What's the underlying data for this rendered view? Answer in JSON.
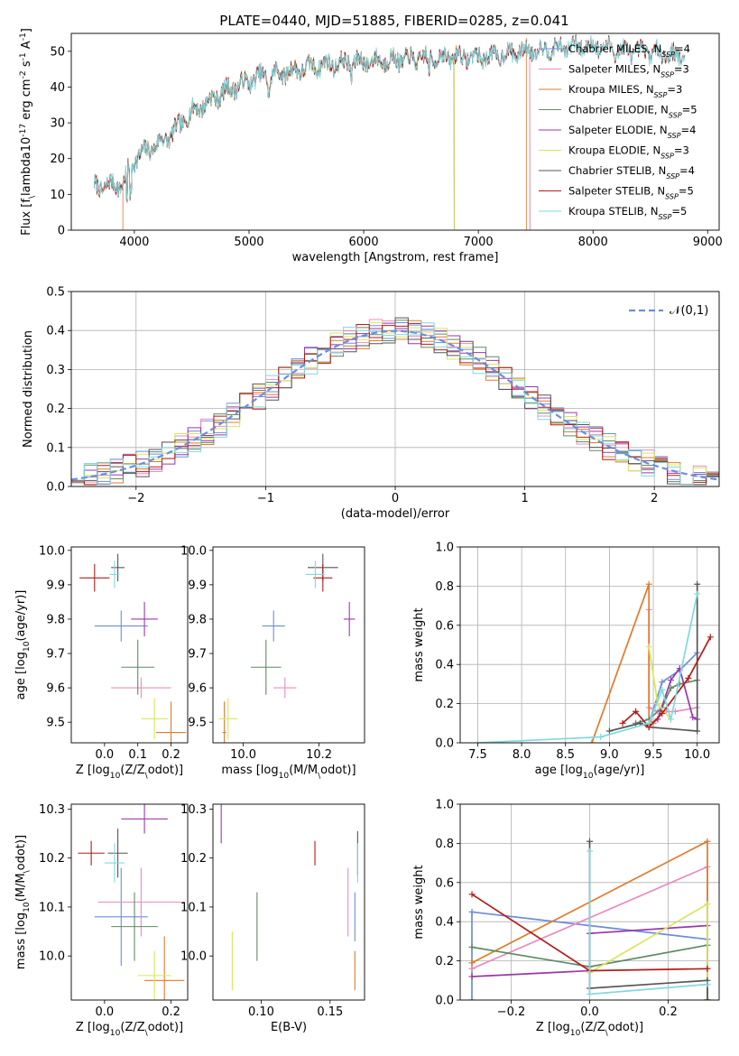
{
  "figure": {
    "title": "PLATE=0440, MJD=51885, FIBERID=0285, z=0.041",
    "palette": {
      "Chabrier MILES": "#6d8ddb",
      "Salpeter MILES": "#e88cc0",
      "Kroupa MILES": "#e07b2b",
      "Chabrier ELODIE": "#5f8c64",
      "Salpeter ELODIE": "#9b38a8",
      "Kroupa ELODIE": "#d9e65a",
      "Chabrier STELIB": "#555555",
      "Salpeter STELIB": "#b51b1b",
      "Kroupa STELIB": "#7fd9dd"
    }
  },
  "chart_data": [
    {
      "id": "spectrum",
      "type": "line",
      "title": "PLATE=0440, MJD=51885, FIBERID=0285, z=0.041",
      "xlabel": "wavelength [Angstrom, rest frame]",
      "ylabel": "Flux [f$_\\lambda$10$^{-17}$ erg cm$^{-2}$ s$^{-1}$ A$^{-1}$]",
      "xlim": [
        3450,
        9100
      ],
      "ylim": [
        0,
        55
      ],
      "xticks": [
        "4000",
        "5000",
        "6000",
        "7000",
        "8000",
        "9000"
      ],
      "yticks": [
        "0",
        "10",
        "20",
        "30",
        "40",
        "50"
      ],
      "legend_position": "top-right",
      "continuum": {
        "x": [
          3650,
          3900,
          4000,
          4300,
          4500,
          4800,
          5100,
          5300,
          5600,
          5900,
          6200,
          6500,
          6800,
          7100,
          7400,
          7700,
          8000,
          8300,
          8600,
          8850
        ],
        "y": [
          12,
          13,
          20,
          26,
          33,
          39,
          43,
          44,
          46,
          47,
          47.5,
          48,
          48.5,
          48.5,
          50,
          51,
          51.5,
          50,
          49.5,
          48
        ]
      },
      "series": [
        {
          "name": "Chabrier MILES, N$_{SSP}$=4",
          "end_x": 7450
        },
        {
          "name": "Salpeter MILES, N$_{SSP}$=3",
          "end_x": 7450
        },
        {
          "name": "Kroupa MILES, N$_{SSP}$=3",
          "end_x": 7420
        },
        {
          "name": "Chabrier ELODIE, N$_{SSP}$=5",
          "end_x": 6790
        },
        {
          "name": "Salpeter ELODIE, N$_{SSP}$=4",
          "end_x": 6790
        },
        {
          "name": "Kroupa ELODIE, N$_{SSP}$=3",
          "end_x": 6790
        },
        {
          "name": "Chabrier STELIB, N$_{SSP}$=4",
          "end_x": 8800
        },
        {
          "name": "Salpeter STELIB, N$_{SSP}$=5",
          "end_x": 8800
        },
        {
          "name": "Kroupa STELIB, N$_{SSP}$=5",
          "end_x": 8800
        }
      ]
    },
    {
      "id": "residuals",
      "type": "line",
      "xlabel": "(data-model)/error",
      "ylabel": "Normed distribution",
      "xlim": [
        -2.5,
        2.5
      ],
      "ylim": [
        0,
        0.5
      ],
      "xticks": [
        "−2",
        "−1",
        "0",
        "1",
        "2"
      ],
      "yticks": [
        "0.0",
        "0.1",
        "0.2",
        "0.3",
        "0.4",
        "0.5"
      ],
      "grid": true,
      "legend_position": "top-right",
      "reference": {
        "name": "$\\mathcal{N}(0,1)$",
        "mean": 0,
        "sigma": 1
      },
      "bin_width": 0.1,
      "bins_from": -2.5
    },
    {
      "id": "age_vs_Z",
      "type": "scatter",
      "xlabel": "Z [log$_{10}$(Z/Z$_\\odot$)]",
      "ylabel": "age  [log$_{10}$(age/yr)]",
      "xlim": [
        -0.1,
        0.25
      ],
      "ylim": [
        9.44,
        10.01
      ],
      "xticks": [
        "0.0",
        "0.1",
        "0.2"
      ],
      "yticks": [
        "9.5",
        "9.6",
        "9.7",
        "9.8",
        "9.9",
        "10.0"
      ],
      "points": [
        {
          "model": "Chabrier MILES",
          "x": 0.05,
          "y": 9.78,
          "xerr": 0.08,
          "yerr": 0.045
        },
        {
          "model": "Salpeter MILES",
          "x": 0.11,
          "y": 9.6,
          "xerr": 0.09,
          "yerr": 0.03
        },
        {
          "model": "Kroupa MILES",
          "x": 0.2,
          "y": 9.47,
          "xerr": 0.045,
          "yerr": 0.09
        },
        {
          "model": "Chabrier ELODIE",
          "x": 0.1,
          "y": 9.66,
          "xerr": 0.05,
          "yerr": 0.08
        },
        {
          "model": "Salpeter ELODIE",
          "x": 0.12,
          "y": 9.8,
          "xerr": 0.04,
          "yerr": 0.05
        },
        {
          "model": "Kroupa ELODIE",
          "x": 0.15,
          "y": 9.51,
          "xerr": 0.04,
          "yerr": 0.06
        },
        {
          "model": "Chabrier STELIB",
          "x": 0.04,
          "y": 9.95,
          "xerr": 0.02,
          "yerr": 0.04
        },
        {
          "model": "Salpeter STELIB",
          "x": -0.03,
          "y": 9.92,
          "xerr": 0.045,
          "yerr": 0.04
        },
        {
          "model": "Kroupa STELIB",
          "x": 0.03,
          "y": 9.93,
          "xerr": 0.015,
          "yerr": 0.04
        }
      ]
    },
    {
      "id": "age_vs_mass",
      "type": "scatter",
      "xlabel": "mass [log$_{10}$(M/M$_\\odot$)]",
      "ylabel": "",
      "xlim": [
        9.92,
        10.32
      ],
      "ylim": [
        9.44,
        10.01
      ],
      "xticks": [
        "10.0",
        "10.2"
      ],
      "yticks": [
        "9.5",
        "9.6",
        "9.7",
        "9.8",
        "9.9",
        "10.0"
      ],
      "points": [
        {
          "model": "Chabrier MILES",
          "x": 10.08,
          "y": 9.78,
          "xerr": 0.03,
          "yerr": 0.045
        },
        {
          "model": "Salpeter MILES",
          "x": 10.11,
          "y": 9.6,
          "xerr": 0.03,
          "yerr": 0.03
        },
        {
          "model": "Kroupa MILES",
          "x": 9.95,
          "y": 9.47,
          "xerr": 0.005,
          "yerr": 0.09
        },
        {
          "model": "Chabrier ELODIE",
          "x": 10.06,
          "y": 9.66,
          "xerr": 0.04,
          "yerr": 0.08
        },
        {
          "model": "Salpeter ELODIE",
          "x": 10.28,
          "y": 9.8,
          "xerr": 0.015,
          "yerr": 0.05
        },
        {
          "model": "Kroupa ELODIE",
          "x": 9.96,
          "y": 9.51,
          "xerr": 0.025,
          "yerr": 0.06
        },
        {
          "model": "Chabrier STELIB",
          "x": 10.21,
          "y": 9.95,
          "xerr": 0.04,
          "yerr": 0.04
        },
        {
          "model": "Salpeter STELIB",
          "x": 10.21,
          "y": 9.92,
          "xerr": 0.025,
          "yerr": 0.04
        },
        {
          "model": "Kroupa STELIB",
          "x": 10.19,
          "y": 9.93,
          "xerr": 0.025,
          "yerr": 0.04
        }
      ]
    },
    {
      "id": "weight_vs_age",
      "type": "line",
      "xlabel": "age  [log$_{10}$(age/yr)]",
      "ylabel": "mass weight",
      "xlim": [
        7.3,
        10.25
      ],
      "ylim": [
        0,
        1
      ],
      "xticks": [
        "7.5",
        "8.0",
        "8.5",
        "9.0",
        "9.5",
        "10.0"
      ],
      "yticks": [
        "0.0",
        "0.2",
        "0.4",
        "0.6",
        "0.8",
        "1.0"
      ],
      "grid": true,
      "series": [
        {
          "model": "Chabrier MILES",
          "x": [
            9.45,
            9.6,
            9.8,
            10.0
          ],
          "y": [
            0.1,
            0.31,
            0.37,
            0.46
          ]
        },
        {
          "model": "Salpeter MILES",
          "x": [
            9.45,
            9.45,
            9.55,
            9.65,
            9.75,
            10.0
          ],
          "y": [
            0.68,
            0.18,
            0.16,
            0.16,
            0.16,
            0.18
          ]
        },
        {
          "model": "Kroupa MILES",
          "x": [
            8.8,
            9.45,
            9.45,
            9.5
          ],
          "y": [
            0.0,
            0.81,
            0.12,
            0.1
          ]
        },
        {
          "model": "Chabrier ELODIE",
          "x": [
            9.3,
            9.45,
            9.6,
            9.7,
            9.8,
            10.0
          ],
          "y": [
            0.1,
            0.12,
            0.18,
            0.28,
            0.3,
            0.32
          ]
        },
        {
          "model": "Salpeter ELODIE",
          "x": [
            9.45,
            9.55,
            9.7,
            9.8,
            9.95,
            10.0
          ],
          "y": [
            0.09,
            0.12,
            0.32,
            0.38,
            0.13,
            0.12
          ]
        },
        {
          "model": "Kroupa ELODIE",
          "x": [
            9.45,
            9.55,
            9.7
          ],
          "y": [
            0.49,
            0.2,
            0.12
          ]
        },
        {
          "model": "Chabrier STELIB",
          "x": [
            9.0,
            9.35,
            9.45,
            10.0,
            10.0
          ],
          "y": [
            0.06,
            0.1,
            0.08,
            0.06,
            0.81
          ]
        },
        {
          "model": "Salpeter STELIB",
          "x": [
            9.15,
            9.3,
            9.45,
            9.6,
            9.9,
            10.15
          ],
          "y": [
            0.1,
            0.16,
            0.08,
            0.15,
            0.33,
            0.54
          ]
        },
        {
          "model": "Kroupa STELIB",
          "x": [
            7.5,
            8.9,
            9.45,
            9.6,
            9.7,
            10.0
          ],
          "y": [
            0.0,
            0.03,
            0.1,
            0.27,
            0.12,
            0.76
          ]
        }
      ]
    },
    {
      "id": "mass_vs_Z",
      "type": "scatter",
      "xlabel": "Z [log$_{10}$(Z/Z$_\\odot$)]",
      "ylabel": "mass [log$_{10}$(M/M$_\\odot$)]",
      "xlim": [
        -0.1,
        0.25
      ],
      "ylim": [
        9.91,
        10.31
      ],
      "xticks": [
        "0.0",
        "0.2"
      ],
      "yticks": [
        "10.0",
        "10.1",
        "10.2",
        "10.3"
      ],
      "points": [
        {
          "model": "Chabrier MILES",
          "x": 0.05,
          "y": 10.08,
          "xerr": 0.08,
          "yerr": 0.1
        },
        {
          "model": "Salpeter MILES",
          "x": 0.11,
          "y": 10.11,
          "xerr": 0.13,
          "yerr": 0.07
        },
        {
          "model": "Kroupa MILES",
          "x": 0.18,
          "y": 9.95,
          "xerr": 0.06,
          "yerr": 0.09
        },
        {
          "model": "Chabrier ELODIE",
          "x": 0.09,
          "y": 10.06,
          "xerr": 0.07,
          "yerr": 0.07
        },
        {
          "model": "Salpeter ELODIE",
          "x": 0.12,
          "y": 10.28,
          "xerr": 0.07,
          "yerr": 0.03
        },
        {
          "model": "Kroupa ELODIE",
          "x": 0.15,
          "y": 9.96,
          "xerr": 0.05,
          "yerr": 0.05
        },
        {
          "model": "Chabrier STELIB",
          "x": 0.04,
          "y": 10.21,
          "xerr": 0.03,
          "yerr": 0.05
        },
        {
          "model": "Salpeter STELIB",
          "x": -0.04,
          "y": 10.21,
          "xerr": 0.04,
          "yerr": 0.025
        },
        {
          "model": "Kroupa STELIB",
          "x": 0.03,
          "y": 10.19,
          "xerr": 0.03,
          "yerr": 0.04
        }
      ]
    },
    {
      "id": "mass_vs_EBV",
      "type": "scatter",
      "xlabel": "E(B-V)",
      "ylabel": "",
      "xlim": [
        0.065,
        0.175
      ],
      "ylim": [
        9.91,
        10.31
      ],
      "xticks": [
        "0.10",
        "0.15"
      ],
      "yticks": [
        "10.0",
        "10.1",
        "10.2",
        "10.3"
      ],
      "points": [
        {
          "model": "Chabrier MILES",
          "x": 0.168,
          "y": 10.08,
          "yerr": 0.05
        },
        {
          "model": "Salpeter MILES",
          "x": 0.163,
          "y": 10.11,
          "yerr": 0.07
        },
        {
          "model": "Kroupa MILES",
          "x": 0.168,
          "y": 9.97,
          "yerr": 0.04
        },
        {
          "model": "Chabrier ELODIE",
          "x": 0.097,
          "y": 10.06,
          "yerr": 0.07
        },
        {
          "model": "Salpeter ELODIE",
          "x": 0.071,
          "y": 10.27,
          "yerr": 0.04
        },
        {
          "model": "Kroupa ELODIE",
          "x": 0.079,
          "y": 9.99,
          "yerr": 0.06
        },
        {
          "model": "Chabrier STELIB",
          "x": 0.17,
          "y": 10.21,
          "yerr": 0.045
        },
        {
          "model": "Salpeter STELIB",
          "x": 0.139,
          "y": 10.21,
          "yerr": 0.025
        },
        {
          "model": "Kroupa STELIB",
          "x": 0.17,
          "y": 10.19,
          "yerr": 0.04
        }
      ]
    },
    {
      "id": "weight_vs_Z",
      "type": "line",
      "xlabel": "Z [log$_{10}$(Z/Z$_\\odot$)]",
      "ylabel": "mass weight",
      "xlim": [
        -0.33,
        0.33
      ],
      "ylim": [
        0,
        1
      ],
      "xticks": [
        "−0.2",
        "0.0",
        "0.2"
      ],
      "yticks": [
        "0.0",
        "0.2",
        "0.4",
        "0.6",
        "0.8",
        "1.0"
      ],
      "grid": true,
      "series": [
        {
          "model": "Chabrier MILES",
          "x": [
            -0.3,
            -0.3,
            0.0,
            0.3
          ],
          "y": [
            0.0,
            0.45,
            0.38,
            0.31
          ]
        },
        {
          "model": "Salpeter MILES",
          "x": [
            -0.3,
            0.3,
            0.3
          ],
          "y": [
            0.16,
            0.68,
            0.0
          ]
        },
        {
          "model": "Kroupa MILES",
          "x": [
            -0.3,
            0.3,
            0.3
          ],
          "y": [
            0.19,
            0.81,
            0.0
          ]
        },
        {
          "model": "Chabrier ELODIE",
          "x": [
            -0.3,
            0.0,
            0.3,
            0.3
          ],
          "y": [
            0.27,
            0.17,
            0.28,
            0.0
          ]
        },
        {
          "model": "Salpeter ELODIE",
          "x": [
            -0.3,
            0.0,
            0.0,
            0.3
          ],
          "y": [
            0.12,
            0.15,
            0.34,
            0.38
          ]
        },
        {
          "model": "Kroupa ELODIE",
          "x": [
            0.0,
            0.3,
            0.3
          ],
          "y": [
            0.14,
            0.49,
            0.0
          ]
        },
        {
          "model": "Chabrier STELIB",
          "x": [
            0.0,
            0.0,
            0.3,
            0.3
          ],
          "y": [
            0.81,
            0.06,
            0.1,
            0.0
          ]
        },
        {
          "model": "Salpeter STELIB",
          "x": [
            -0.3,
            0.0,
            0.3
          ],
          "y": [
            0.54,
            0.15,
            0.16
          ]
        },
        {
          "model": "Kroupa STELIB",
          "x": [
            0.0,
            0.0,
            0.3
          ],
          "y": [
            0.76,
            0.03,
            0.08
          ]
        }
      ]
    }
  ]
}
